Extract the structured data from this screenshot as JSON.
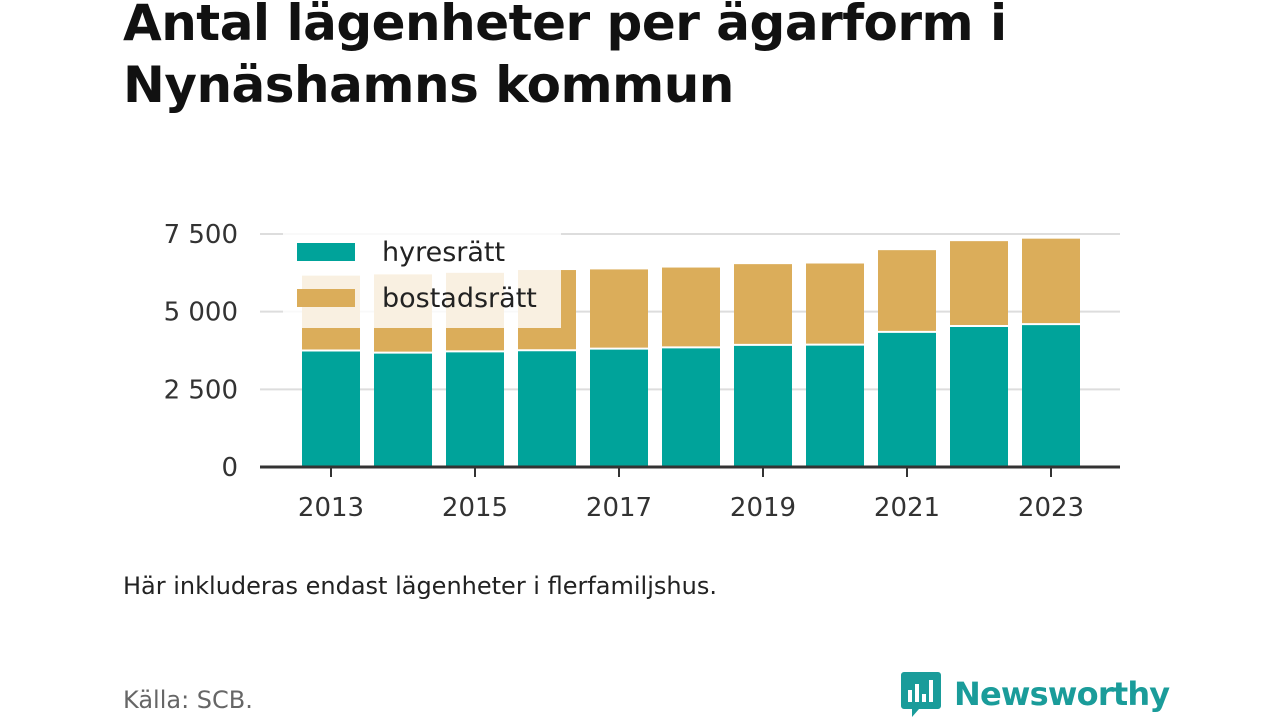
{
  "title": "Antal lägenheter per ägarform i Nynäshamns kommun",
  "note": "Här inkluderas endast lägenheter i flerfamiljshus.",
  "source": "Källa: SCB.",
  "brand": {
    "name": "Newsworthy",
    "color": "#1a9c9a",
    "icon": "bar-chart-speech-bubble-icon"
  },
  "chart_data": {
    "type": "bar",
    "stacked": true,
    "categories": [
      "2013",
      "2014",
      "2015",
      "2016",
      "2017",
      "2018",
      "2019",
      "2020",
      "2021",
      "2022",
      "2023"
    ],
    "x_tick_labels": [
      "2013",
      "",
      "2015",
      "",
      "2017",
      "",
      "2019",
      "",
      "2021",
      "",
      "2023"
    ],
    "series": [
      {
        "name": "hyresrätt",
        "color": "#00a39a",
        "values": [
          3750,
          3680,
          3720,
          3760,
          3810,
          3850,
          3930,
          3940,
          4350,
          4540,
          4600
        ]
      },
      {
        "name": "bostadsrätt",
        "color": "#dbad5a",
        "values": [
          2410,
          2520,
          2530,
          2580,
          2550,
          2570,
          2600,
          2610,
          2630,
          2730,
          2750
        ]
      }
    ],
    "ylim": [
      0,
      7500
    ],
    "y_ticks": [
      0,
      2500,
      5000,
      7500
    ],
    "y_tick_labels": [
      "0",
      "2 500",
      "5 000",
      "7 500"
    ],
    "grid": true,
    "legend_position": "top-left"
  }
}
